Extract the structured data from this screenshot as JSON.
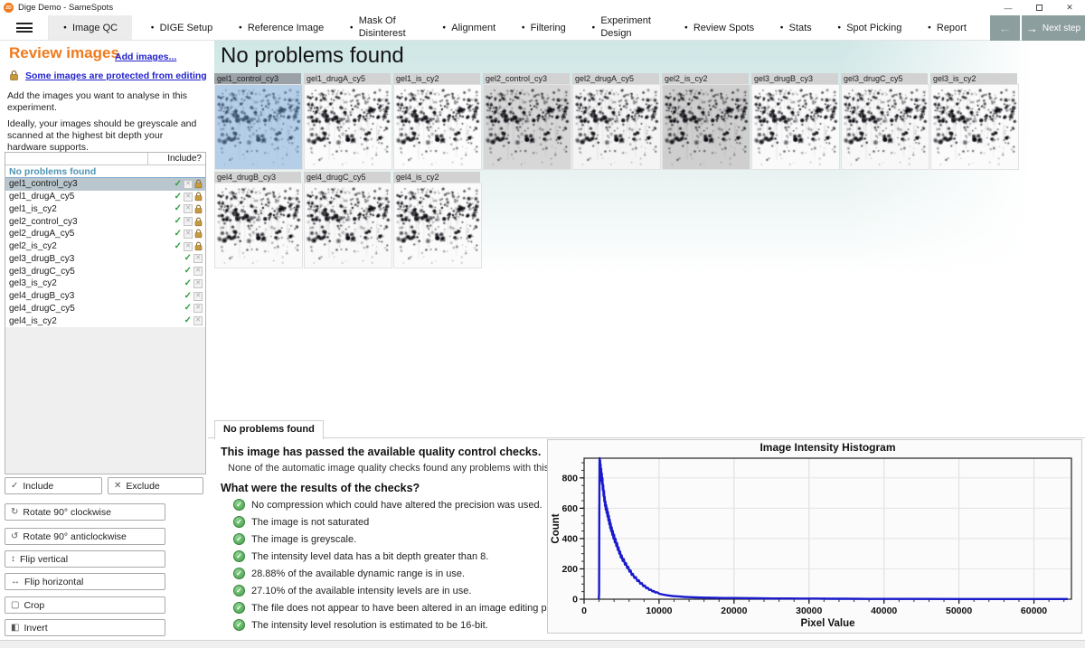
{
  "window": {
    "title": "Dige Demo - SameSpots",
    "icon_text": "2D"
  },
  "nav": {
    "tabs": [
      {
        "label": "Image QC",
        "active": true
      },
      {
        "label": "DIGE Setup"
      },
      {
        "label": "Reference Image"
      },
      {
        "label": "Mask Of Disinterest",
        "wrap": true
      },
      {
        "label": "Alignment"
      },
      {
        "label": "Filtering"
      },
      {
        "label": "Experiment Design",
        "wrap": true
      },
      {
        "label": "Review Spots"
      },
      {
        "label": "Stats"
      },
      {
        "label": "Spot Picking"
      },
      {
        "label": "Report"
      }
    ],
    "next_label": "Next step"
  },
  "sidebar": {
    "title": "Review images",
    "add_link": "Add images...",
    "protected_link": "Some images are protected from editing",
    "description1": "Add the images you want to analyse in this experiment.",
    "description2": "Ideally, your images should be greyscale and scanned at the highest bit depth your hardware supports.",
    "include_header": "Include?",
    "group_header": "No problems found",
    "images": [
      {
        "name": "gel1_control_cy3",
        "included": true,
        "locked": true,
        "selected": true
      },
      {
        "name": "gel1_drugA_cy5",
        "included": true,
        "locked": true
      },
      {
        "name": "gel1_is_cy2",
        "included": true,
        "locked": true
      },
      {
        "name": "gel2_control_cy3",
        "included": true,
        "locked": true
      },
      {
        "name": "gel2_drugA_cy5",
        "included": true,
        "locked": true
      },
      {
        "name": "gel2_is_cy2",
        "included": true,
        "locked": true
      },
      {
        "name": "gel3_drugB_cy3",
        "included": true,
        "locked": false
      },
      {
        "name": "gel3_drugC_cy5",
        "included": true,
        "locked": false
      },
      {
        "name": "gel3_is_cy2",
        "included": true,
        "locked": false
      },
      {
        "name": "gel4_drugB_cy3",
        "included": true,
        "locked": false
      },
      {
        "name": "gel4_drugC_cy5",
        "included": true,
        "locked": false
      },
      {
        "name": "gel4_is_cy2",
        "included": true,
        "locked": false
      }
    ],
    "actions": {
      "include": "Include",
      "exclude": "Exclude",
      "rotate_cw": "Rotate 90° clockwise",
      "rotate_ccw": "Rotate 90° anticlockwise",
      "flip_v": "Flip vertical",
      "flip_h": "Flip horizontal",
      "crop": "Crop",
      "invert": "Invert"
    }
  },
  "main": {
    "header": "No problems found",
    "thumbnails": [
      {
        "name": "gel1_control_cy3",
        "selected": true,
        "bg": "#f2f6f9"
      },
      {
        "name": "gel1_drugA_cy5",
        "bg": "#fbfbfb"
      },
      {
        "name": "gel1_is_cy2",
        "bg": "#fcfcfc"
      },
      {
        "name": "gel2_control_cy3",
        "bg": "#d7d7d7"
      },
      {
        "name": "gel2_drugA_cy5",
        "bg": "#f4f4f4"
      },
      {
        "name": "gel2_is_cy2",
        "bg": "#cfcfcf"
      },
      {
        "name": "gel3_drugB_cy3",
        "bg": "#fafafa"
      },
      {
        "name": "gel3_drugC_cy5",
        "bg": "#f8f8f8"
      },
      {
        "name": "gel3_is_cy2",
        "bg": "#fbfbfb"
      },
      {
        "name": "gel4_drugB_cy3",
        "bg": "#fafafa"
      },
      {
        "name": "gel4_drugC_cy5",
        "bg": "#f9f9f9"
      },
      {
        "name": "gel4_is_cy2",
        "bg": "#fbfbfb"
      }
    ],
    "qc_tab": "No problems found",
    "qc_heading": "This image has passed the available quality control checks.",
    "qc_subtext": "None of the automatic image quality checks found any problems with this image.",
    "qc_question": "What were the results of the checks?",
    "qc_checks": [
      "No compression which could have altered the precision was used.",
      "The image is not saturated",
      "The image is greyscale.",
      "The intensity level data has a bit depth greater than 8.",
      "28.88% of the available dynamic range is in use.",
      "27.10% of the available intensity levels are in use.",
      "The file does not appear to have been altered in an image editing program.",
      "The intensity level resolution is estimated to be 16-bit."
    ]
  },
  "colors": {
    "accent_orange": "#ee7b1d",
    "link_blue": "#2222cc",
    "banner_teal": "#cfe7e6",
    "button_sage": "#8d9e9f",
    "histogram_blue": "#1a1acd",
    "check_green": "#43a047",
    "lock_gold": "#c99a3c",
    "group_header_blue": "#4e95b5"
  },
  "chart_data": {
    "type": "line",
    "title": "Image Intensity Histogram",
    "xlabel": "Pixel Value",
    "ylabel": "Count",
    "xlim": [
      0,
      65000
    ],
    "ylim": [
      0,
      930
    ],
    "x_ticks": [
      0,
      10000,
      20000,
      30000,
      40000,
      50000,
      60000
    ],
    "y_ticks": [
      0,
      200,
      400,
      600,
      800
    ],
    "x_minor_step": 2000,
    "y_minor_step": 50,
    "grid": true,
    "line_color": "#1a1acd",
    "legend": false,
    "series": [
      {
        "name": "pixel-count",
        "points": [
          [
            1950,
            0
          ],
          [
            2000,
            40
          ],
          [
            2030,
            520
          ],
          [
            2060,
            900
          ],
          [
            2080,
            930
          ],
          [
            2110,
            850
          ],
          [
            2140,
            915
          ],
          [
            2170,
            830
          ],
          [
            2200,
            890
          ],
          [
            2240,
            810
          ],
          [
            2280,
            860
          ],
          [
            2320,
            780
          ],
          [
            2360,
            830
          ],
          [
            2400,
            760
          ],
          [
            2450,
            800
          ],
          [
            2500,
            720
          ],
          [
            2550,
            755
          ],
          [
            2600,
            680
          ],
          [
            2650,
            715
          ],
          [
            2700,
            645
          ],
          [
            2750,
            675
          ],
          [
            2800,
            615
          ],
          [
            2850,
            645
          ],
          [
            2900,
            590
          ],
          [
            2950,
            620
          ],
          [
            3000,
            570
          ],
          [
            3060,
            600
          ],
          [
            3120,
            545
          ],
          [
            3180,
            575
          ],
          [
            3240,
            520
          ],
          [
            3300,
            550
          ],
          [
            3360,
            495
          ],
          [
            3420,
            525
          ],
          [
            3480,
            470
          ],
          [
            3540,
            500
          ],
          [
            3600,
            450
          ],
          [
            3680,
            475
          ],
          [
            3760,
            425
          ],
          [
            3840,
            450
          ],
          [
            3920,
            400
          ],
          [
            4000,
            425
          ],
          [
            4100,
            375
          ],
          [
            4200,
            398
          ],
          [
            4300,
            350
          ],
          [
            4400,
            370
          ],
          [
            4500,
            325
          ],
          [
            4600,
            342
          ],
          [
            4700,
            300
          ],
          [
            4800,
            315
          ],
          [
            4900,
            275
          ],
          [
            5000,
            290
          ],
          [
            5150,
            252
          ],
          [
            5300,
            265
          ],
          [
            5450,
            228
          ],
          [
            5600,
            238
          ],
          [
            5750,
            205
          ],
          [
            5900,
            213
          ],
          [
            6050,
            182
          ],
          [
            6200,
            190
          ],
          [
            6350,
            160
          ],
          [
            6500,
            167
          ],
          [
            6700,
            140
          ],
          [
            6900,
            146
          ],
          [
            7100,
            120
          ],
          [
            7300,
            125
          ],
          [
            7500,
            102
          ],
          [
            7700,
            106
          ],
          [
            7900,
            86
          ],
          [
            8100,
            90
          ],
          [
            8300,
            72
          ],
          [
            8500,
            76
          ],
          [
            8700,
            61
          ],
          [
            8900,
            64
          ],
          [
            9100,
            52
          ],
          [
            9300,
            54
          ],
          [
            9500,
            44
          ],
          [
            9750,
            46
          ],
          [
            10000,
            37
          ],
          [
            10300,
            33
          ],
          [
            10600,
            30
          ],
          [
            11000,
            26
          ],
          [
            11400,
            23
          ],
          [
            11800,
            21
          ],
          [
            12300,
            19
          ],
          [
            12800,
            17
          ],
          [
            13400,
            15
          ],
          [
            14000,
            14
          ],
          [
            14800,
            12
          ],
          [
            15600,
            11
          ],
          [
            16500,
            10
          ],
          [
            17500,
            9
          ],
          [
            18500,
            8
          ],
          [
            20000,
            8
          ],
          [
            21500,
            7
          ],
          [
            23000,
            6
          ],
          [
            25000,
            5
          ],
          [
            27000,
            5
          ],
          [
            29000,
            4
          ],
          [
            31000,
            4
          ],
          [
            33000,
            3
          ],
          [
            35000,
            3
          ],
          [
            38000,
            2
          ],
          [
            41000,
            2
          ],
          [
            45000,
            2
          ],
          [
            50000,
            1
          ],
          [
            55000,
            1
          ],
          [
            60000,
            1
          ],
          [
            64500,
            1
          ]
        ]
      }
    ]
  }
}
